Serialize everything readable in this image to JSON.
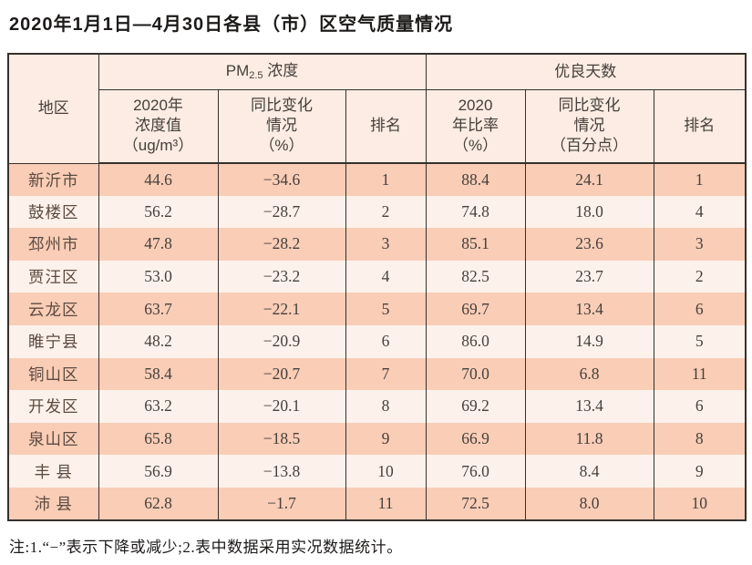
{
  "title": "2020年1月1日—4月30日各县（市）区空气质量情况",
  "note": "注:1.“−”表示下降或减少;2.表中数据采用实况数据统计。",
  "colors": {
    "row_salmon": "#f9cdb6",
    "row_light": "#fdf2eb",
    "header_bg": "#fcece3",
    "grid_line": "#36302d",
    "text": "#46403c",
    "region_text": "#5d4a41",
    "title_text": "#1d1b1a"
  },
  "table": {
    "headers": {
      "region": "地区",
      "pm_prefix": "PM",
      "pm_sub": "2.5",
      "pm_suffix": " 浓度",
      "good_days": "优良天数",
      "pm_value": "2020年\n浓度值\n（ug/m³）",
      "pm_change": "同比变化\n情况\n（%）",
      "pm_rank": "排名",
      "gd_rate": "2020\n年比率\n（%）",
      "gd_change": "同比变化\n情况\n（百分点）",
      "gd_rank": "排名"
    },
    "rows": [
      [
        "新沂市",
        "44.6",
        "−34.6",
        "1",
        "88.4",
        "24.1",
        "1"
      ],
      [
        "鼓楼区",
        "56.2",
        "−28.7",
        "2",
        "74.8",
        "18.0",
        "4"
      ],
      [
        "邳州市",
        "47.8",
        "−28.2",
        "3",
        "85.1",
        "23.6",
        "3"
      ],
      [
        "贾汪区",
        "53.0",
        "−23.2",
        "4",
        "82.5",
        "23.7",
        "2"
      ],
      [
        "云龙区",
        "63.7",
        "−22.1",
        "5",
        "69.7",
        "13.4",
        "6"
      ],
      [
        "睢宁县",
        "48.2",
        "−20.9",
        "6",
        "86.0",
        "14.9",
        "5"
      ],
      [
        "铜山区",
        "58.4",
        "−20.7",
        "7",
        "70.0",
        "6.8",
        "11"
      ],
      [
        "开发区",
        "63.2",
        "−20.1",
        "8",
        "69.2",
        "13.4",
        "6"
      ],
      [
        "泉山区",
        "65.8",
        "−18.5",
        "9",
        "66.9",
        "11.8",
        "8"
      ],
      [
        "丰 县",
        "56.9",
        "−13.8",
        "10",
        "76.0",
        "8.4",
        "9"
      ],
      [
        "沛 县",
        "62.8",
        "−1.7",
        "11",
        "72.5",
        "8.0",
        "10"
      ]
    ]
  }
}
